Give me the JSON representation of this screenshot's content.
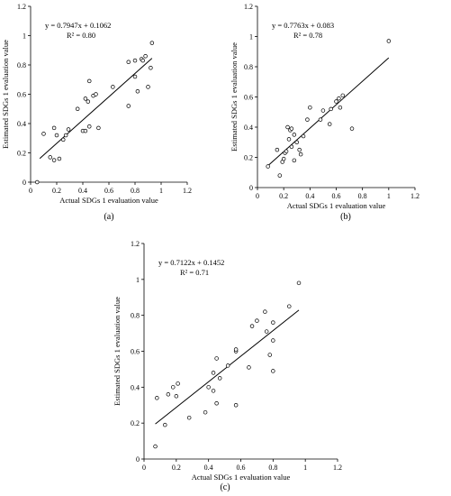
{
  "chart_data": [
    {
      "type": "scatter",
      "panel_label": "(a)",
      "xlabel": "Actual SDGs 1 evaluation value",
      "ylabel": "Estimated SDGs 1 evaluation value",
      "equation": "y = 0.7947x + 0.1062",
      "r2_text": "R² = 0.80",
      "xlim": [
        0,
        1.2
      ],
      "ylim": [
        0,
        1.2
      ],
      "xticks": [
        "0",
        "0.2",
        "0.4",
        "0.6",
        "0.8",
        "1",
        "1.2"
      ],
      "yticks": [
        "0",
        "0.2",
        "0.4",
        "0.6",
        "0.8",
        "1",
        "1.2"
      ],
      "trendline": {
        "slope": 0.7947,
        "intercept": 0.1062,
        "x_range": [
          0.07,
          0.93
        ]
      },
      "grid": false,
      "points": [
        {
          "x": 0.05,
          "y": 0.0
        },
        {
          "x": 0.1,
          "y": 0.33
        },
        {
          "x": 0.15,
          "y": 0.17
        },
        {
          "x": 0.18,
          "y": 0.15
        },
        {
          "x": 0.2,
          "y": 0.32
        },
        {
          "x": 0.22,
          "y": 0.16
        },
        {
          "x": 0.18,
          "y": 0.37
        },
        {
          "x": 0.25,
          "y": 0.29
        },
        {
          "x": 0.27,
          "y": 0.32
        },
        {
          "x": 0.29,
          "y": 0.36
        },
        {
          "x": 0.36,
          "y": 0.5
        },
        {
          "x": 0.4,
          "y": 0.35
        },
        {
          "x": 0.42,
          "y": 0.35
        },
        {
          "x": 0.42,
          "y": 0.57
        },
        {
          "x": 0.44,
          "y": 0.55
        },
        {
          "x": 0.45,
          "y": 0.69
        },
        {
          "x": 0.45,
          "y": 0.38
        },
        {
          "x": 0.48,
          "y": 0.59
        },
        {
          "x": 0.5,
          "y": 0.6
        },
        {
          "x": 0.52,
          "y": 0.37
        },
        {
          "x": 0.63,
          "y": 0.65
        },
        {
          "x": 0.75,
          "y": 0.52
        },
        {
          "x": 0.75,
          "y": 0.82
        },
        {
          "x": 0.8,
          "y": 0.72
        },
        {
          "x": 0.8,
          "y": 0.83
        },
        {
          "x": 0.82,
          "y": 0.62
        },
        {
          "x": 0.85,
          "y": 0.84
        },
        {
          "x": 0.86,
          "y": 0.83
        },
        {
          "x": 0.88,
          "y": 0.86
        },
        {
          "x": 0.9,
          "y": 0.65
        },
        {
          "x": 0.92,
          "y": 0.78
        },
        {
          "x": 0.93,
          "y": 0.95
        }
      ]
    },
    {
      "type": "scatter",
      "panel_label": "(b)",
      "xlabel": "Actual SDGs 1 evaluation value",
      "ylabel": "Estimated SDGs 1 evaluation value",
      "equation": "y = 0.7763x + 0.083",
      "r2_text": "R² = 0.78",
      "xlim": [
        0,
        1.2
      ],
      "ylim": [
        0,
        1.2
      ],
      "xticks": [
        "0",
        "0.2",
        "0.4",
        "0.6",
        "0.8",
        "1",
        "1.2"
      ],
      "yticks": [
        "0",
        "0.2",
        "0.4",
        "0.6",
        "0.8",
        "1",
        "1.2"
      ],
      "trendline": {
        "slope": 0.7763,
        "intercept": 0.083,
        "x_range": [
          0.08,
          1.0
        ]
      },
      "grid": false,
      "points": [
        {
          "x": 0.08,
          "y": 0.14
        },
        {
          "x": 0.15,
          "y": 0.25
        },
        {
          "x": 0.17,
          "y": 0.08
        },
        {
          "x": 0.19,
          "y": 0.17
        },
        {
          "x": 0.2,
          "y": 0.19
        },
        {
          "x": 0.21,
          "y": 0.23
        },
        {
          "x": 0.22,
          "y": 0.24
        },
        {
          "x": 0.23,
          "y": 0.4
        },
        {
          "x": 0.24,
          "y": 0.32
        },
        {
          "x": 0.25,
          "y": 0.38
        },
        {
          "x": 0.26,
          "y": 0.39
        },
        {
          "x": 0.26,
          "y": 0.27
        },
        {
          "x": 0.28,
          "y": 0.18
        },
        {
          "x": 0.28,
          "y": 0.35
        },
        {
          "x": 0.3,
          "y": 0.3
        },
        {
          "x": 0.32,
          "y": 0.25
        },
        {
          "x": 0.33,
          "y": 0.22
        },
        {
          "x": 0.35,
          "y": 0.34
        },
        {
          "x": 0.38,
          "y": 0.45
        },
        {
          "x": 0.4,
          "y": 0.53
        },
        {
          "x": 0.48,
          "y": 0.45
        },
        {
          "x": 0.5,
          "y": 0.51
        },
        {
          "x": 0.55,
          "y": 0.42
        },
        {
          "x": 0.56,
          "y": 0.52
        },
        {
          "x": 0.6,
          "y": 0.57
        },
        {
          "x": 0.62,
          "y": 0.59
        },
        {
          "x": 0.63,
          "y": 0.53
        },
        {
          "x": 0.65,
          "y": 0.61
        },
        {
          "x": 0.72,
          "y": 0.39
        },
        {
          "x": 1.0,
          "y": 0.97
        }
      ]
    },
    {
      "type": "scatter",
      "panel_label": "(c)",
      "xlabel": "Actual SDGs 1 evaluation value",
      "ylabel": "Estimated SDGs 1 evaluation value",
      "equation": "y = 0.7122x + 0.1452",
      "r2_text": "R² = 0.71",
      "xlim": [
        0,
        1.2
      ],
      "ylim": [
        0,
        1.2
      ],
      "xticks": [
        "0",
        "0.2",
        "0.4",
        "0.6",
        "0.8",
        "1",
        "1.2"
      ],
      "yticks": [
        "0",
        "0.2",
        "0.4",
        "0.6",
        "0.8",
        "1",
        "1.2"
      ],
      "trendline": {
        "slope": 0.7122,
        "intercept": 0.1452,
        "x_range": [
          0.07,
          0.96
        ]
      },
      "grid": false,
      "points": [
        {
          "x": 0.07,
          "y": 0.07
        },
        {
          "x": 0.08,
          "y": 0.34
        },
        {
          "x": 0.13,
          "y": 0.19
        },
        {
          "x": 0.15,
          "y": 0.36
        },
        {
          "x": 0.18,
          "y": 0.4
        },
        {
          "x": 0.2,
          "y": 0.35
        },
        {
          "x": 0.21,
          "y": 0.42
        },
        {
          "x": 0.28,
          "y": 0.23
        },
        {
          "x": 0.38,
          "y": 0.26
        },
        {
          "x": 0.4,
          "y": 0.4
        },
        {
          "x": 0.43,
          "y": 0.38
        },
        {
          "x": 0.43,
          "y": 0.48
        },
        {
          "x": 0.45,
          "y": 0.56
        },
        {
          "x": 0.45,
          "y": 0.31
        },
        {
          "x": 0.47,
          "y": 0.45
        },
        {
          "x": 0.52,
          "y": 0.52
        },
        {
          "x": 0.57,
          "y": 0.6
        },
        {
          "x": 0.57,
          "y": 0.61
        },
        {
          "x": 0.57,
          "y": 0.3
        },
        {
          "x": 0.65,
          "y": 0.51
        },
        {
          "x": 0.67,
          "y": 0.74
        },
        {
          "x": 0.7,
          "y": 0.77
        },
        {
          "x": 0.75,
          "y": 0.82
        },
        {
          "x": 0.76,
          "y": 0.71
        },
        {
          "x": 0.78,
          "y": 0.58
        },
        {
          "x": 0.8,
          "y": 0.76
        },
        {
          "x": 0.8,
          "y": 0.66
        },
        {
          "x": 0.8,
          "y": 0.49
        },
        {
          "x": 0.9,
          "y": 0.85
        },
        {
          "x": 0.96,
          "y": 0.98
        }
      ]
    }
  ]
}
